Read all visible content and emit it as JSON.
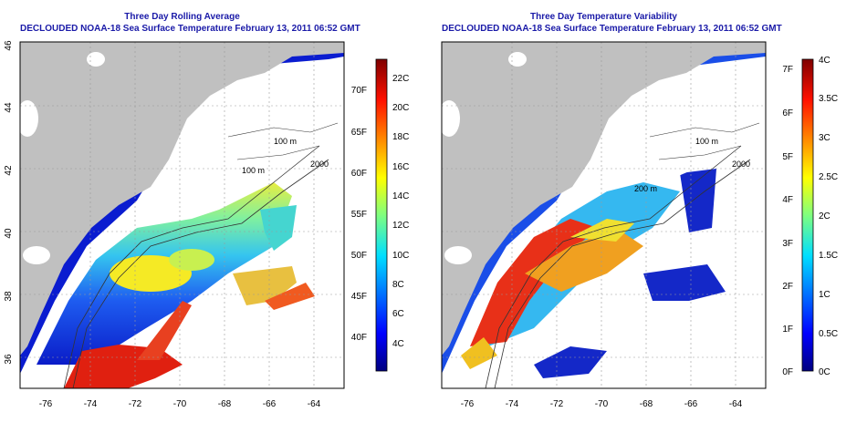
{
  "panels": [
    {
      "title": "Three Day Rolling Average",
      "subtitle": "DECLOUDED NOAA-18 Sea Surface Temperature February 13, 2011 06:52 GMT",
      "colorbar": {
        "f_labels": [
          "70F",
          "65F",
          "60F",
          "55F",
          "50F",
          "45F",
          "40F"
        ],
        "c_labels": [
          "22C",
          "20C",
          "18C",
          "16C",
          "14C",
          "12C",
          "10C",
          "8C",
          "6C",
          "4C"
        ],
        "range_c": [
          3,
          23.5
        ],
        "colors": [
          "#00007f",
          "#0000ff",
          "#007fff",
          "#00ffff",
          "#7fff7f",
          "#ffff00",
          "#ff7f00",
          "#ff0000",
          "#7f0000"
        ]
      }
    },
    {
      "title": "Three Day Temperature Variability",
      "subtitle": "DECLOUDED NOAA-18 Sea Surface Temperature February 13, 2011 06:52 GMT",
      "colorbar": {
        "f_labels": [
          "7F",
          "6F",
          "5F",
          "4F",
          "3F",
          "2F",
          "1F",
          "0F"
        ],
        "c_labels": [
          "4C",
          "3.5C",
          "3C",
          "2.5C",
          "2C",
          "1.5C",
          "1C",
          "0.5C",
          "0C"
        ],
        "range_c": [
          0,
          4
        ],
        "colors": [
          "#00007f",
          "#0000ff",
          "#007fff",
          "#00ffff",
          "#7fff7f",
          "#ffff00",
          "#ff7f00",
          "#ff0000",
          "#7f0000"
        ]
      }
    }
  ],
  "axes": {
    "x_ticks": [
      "-76",
      "-74",
      "-72",
      "-70",
      "-68",
      "-66",
      "-64"
    ],
    "y_ticks": [
      "46",
      "44",
      "42",
      "40",
      "38",
      "36"
    ]
  },
  "contour_labels": [
    "100 m",
    "100 m",
    "2000",
    "200 m",
    "2000"
  ],
  "colors": {
    "land": "#c0c0c0",
    "title": "#1a1aa8",
    "grid": "#9a9a9a"
  }
}
